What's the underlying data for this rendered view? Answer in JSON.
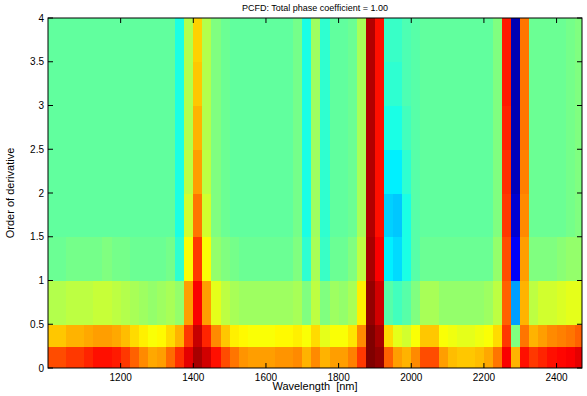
{
  "chart_data": {
    "type": "heatmap",
    "title": "PCFD: Total phase coefficient = 1.00",
    "x_label": "Wavelength  [nm]",
    "y_label": "Order of derivative",
    "xlim": [
      1000,
      2470
    ],
    "ylim": [
      0,
      4
    ],
    "xticks": [
      1200,
      1400,
      1600,
      1800,
      2000,
      2200,
      2400
    ],
    "yticks": [
      0,
      0.5,
      1,
      1.5,
      2,
      2.5,
      3,
      3.5,
      4
    ],
    "zlim": [
      0,
      1
    ],
    "x": [
      1000,
      1025,
      1050,
      1075,
      1100,
      1125,
      1150,
      1175,
      1200,
      1225,
      1250,
      1275,
      1300,
      1325,
      1350,
      1375,
      1400,
      1425,
      1450,
      1475,
      1500,
      1525,
      1550,
      1575,
      1600,
      1625,
      1650,
      1675,
      1700,
      1725,
      1750,
      1775,
      1800,
      1825,
      1850,
      1875,
      1900,
      1925,
      1950,
      1975,
      2000,
      2025,
      2050,
      2075,
      2100,
      2125,
      2150,
      2175,
      2200,
      2225,
      2250,
      2275,
      2300,
      2325,
      2350,
      2375,
      2400,
      2425,
      2450,
      2475
    ],
    "y": [
      0,
      0.25,
      0.5,
      1,
      1.5,
      2,
      2.5,
      3,
      3.5,
      4
    ],
    "values": [
      [
        0.8,
        0.68,
        0.55,
        0.48,
        0.47,
        0.47,
        0.47,
        0.47,
        0.47
      ],
      [
        0.8,
        0.68,
        0.55,
        0.48,
        0.47,
        0.47,
        0.47,
        0.47,
        0.47
      ],
      [
        0.82,
        0.7,
        0.56,
        0.49,
        0.47,
        0.47,
        0.47,
        0.47,
        0.47
      ],
      [
        0.82,
        0.7,
        0.56,
        0.49,
        0.47,
        0.47,
        0.47,
        0.47,
        0.47
      ],
      [
        0.84,
        0.71,
        0.56,
        0.49,
        0.47,
        0.47,
        0.47,
        0.47,
        0.47
      ],
      [
        0.86,
        0.72,
        0.57,
        0.49,
        0.47,
        0.47,
        0.47,
        0.47,
        0.47
      ],
      [
        0.86,
        0.72,
        0.57,
        0.5,
        0.47,
        0.47,
        0.47,
        0.47,
        0.47
      ],
      [
        0.85,
        0.71,
        0.56,
        0.49,
        0.47,
        0.47,
        0.47,
        0.47,
        0.47
      ],
      [
        0.82,
        0.69,
        0.55,
        0.49,
        0.47,
        0.47,
        0.47,
        0.47,
        0.47
      ],
      [
        0.78,
        0.66,
        0.54,
        0.48,
        0.47,
        0.47,
        0.47,
        0.47,
        0.47
      ],
      [
        0.74,
        0.64,
        0.53,
        0.48,
        0.47,
        0.47,
        0.47,
        0.47,
        0.47
      ],
      [
        0.71,
        0.62,
        0.52,
        0.48,
        0.47,
        0.47,
        0.47,
        0.47,
        0.47
      ],
      [
        0.72,
        0.63,
        0.53,
        0.48,
        0.47,
        0.47,
        0.47,
        0.47,
        0.47
      ],
      [
        0.77,
        0.66,
        0.54,
        0.49,
        0.47,
        0.47,
        0.47,
        0.47,
        0.47
      ],
      [
        0.83,
        0.7,
        0.52,
        0.42,
        0.4,
        0.4,
        0.4,
        0.4,
        0.4
      ],
      [
        0.9,
        0.82,
        0.72,
        0.62,
        0.58,
        0.56,
        0.55,
        0.55,
        0.55
      ],
      [
        0.96,
        0.93,
        0.88,
        0.82,
        0.76,
        0.72,
        0.7,
        0.68,
        0.67
      ],
      [
        0.92,
        0.84,
        0.72,
        0.62,
        0.58,
        0.56,
        0.55,
        0.55,
        0.55
      ],
      [
        0.86,
        0.74,
        0.6,
        0.52,
        0.5,
        0.5,
        0.5,
        0.5,
        0.5
      ],
      [
        0.8,
        0.68,
        0.56,
        0.5,
        0.48,
        0.48,
        0.48,
        0.48,
        0.48
      ],
      [
        0.76,
        0.64,
        0.54,
        0.49,
        0.47,
        0.47,
        0.47,
        0.47,
        0.47
      ],
      [
        0.73,
        0.63,
        0.53,
        0.48,
        0.47,
        0.47,
        0.47,
        0.47,
        0.47
      ],
      [
        0.72,
        0.62,
        0.53,
        0.48,
        0.47,
        0.47,
        0.47,
        0.47,
        0.47
      ],
      [
        0.72,
        0.62,
        0.53,
        0.48,
        0.47,
        0.47,
        0.47,
        0.47,
        0.47
      ],
      [
        0.72,
        0.62,
        0.53,
        0.48,
        0.47,
        0.47,
        0.47,
        0.47,
        0.47
      ],
      [
        0.73,
        0.63,
        0.53,
        0.48,
        0.47,
        0.47,
        0.47,
        0.47,
        0.47
      ],
      [
        0.73,
        0.63,
        0.53,
        0.48,
        0.47,
        0.47,
        0.47,
        0.47,
        0.47
      ],
      [
        0.74,
        0.64,
        0.54,
        0.5,
        0.49,
        0.49,
        0.49,
        0.49,
        0.49
      ],
      [
        0.7,
        0.62,
        0.5,
        0.42,
        0.4,
        0.4,
        0.4,
        0.4,
        0.4
      ],
      [
        0.74,
        0.66,
        0.56,
        0.54,
        0.53,
        0.53,
        0.53,
        0.53,
        0.53
      ],
      [
        0.7,
        0.6,
        0.5,
        0.43,
        0.42,
        0.42,
        0.42,
        0.42,
        0.42
      ],
      [
        0.72,
        0.62,
        0.53,
        0.48,
        0.47,
        0.47,
        0.47,
        0.47,
        0.47
      ],
      [
        0.72,
        0.62,
        0.52,
        0.48,
        0.47,
        0.47,
        0.47,
        0.47,
        0.47
      ],
      [
        0.75,
        0.65,
        0.54,
        0.5,
        0.48,
        0.48,
        0.48,
        0.48,
        0.48
      ],
      [
        0.82,
        0.74,
        0.64,
        0.56,
        0.54,
        0.54,
        0.54,
        0.54,
        0.54
      ],
      [
        1,
        1,
        0.98,
        0.96,
        0.95,
        0.95,
        0.95,
        0.95,
        0.95
      ],
      [
        0.98,
        0.96,
        0.92,
        0.88,
        0.86,
        0.86,
        0.86,
        0.86,
        0.86
      ],
      [
        0.78,
        0.66,
        0.46,
        0.36,
        0.33,
        0.36,
        0.4,
        0.42,
        0.43
      ],
      [
        0.72,
        0.6,
        0.44,
        0.34,
        0.32,
        0.36,
        0.4,
        0.42,
        0.43
      ],
      [
        0.7,
        0.58,
        0.46,
        0.4,
        0.4,
        0.42,
        0.44,
        0.45,
        0.45
      ],
      [
        0.74,
        0.62,
        0.5,
        0.46,
        0.46,
        0.46,
        0.46,
        0.46,
        0.46
      ],
      [
        0.8,
        0.68,
        0.54,
        0.48,
        0.47,
        0.47,
        0.47,
        0.47,
        0.47
      ],
      [
        0.8,
        0.68,
        0.54,
        0.48,
        0.47,
        0.47,
        0.47,
        0.47,
        0.47
      ],
      [
        0.72,
        0.62,
        0.52,
        0.48,
        0.47,
        0.47,
        0.47,
        0.47,
        0.47
      ],
      [
        0.69,
        0.61,
        0.52,
        0.48,
        0.47,
        0.47,
        0.47,
        0.47,
        0.47
      ],
      [
        0.68,
        0.6,
        0.52,
        0.48,
        0.47,
        0.47,
        0.47,
        0.47,
        0.47
      ],
      [
        0.68,
        0.6,
        0.52,
        0.48,
        0.47,
        0.47,
        0.47,
        0.47,
        0.47
      ],
      [
        0.69,
        0.61,
        0.52,
        0.48,
        0.47,
        0.47,
        0.47,
        0.47,
        0.47
      ],
      [
        0.71,
        0.62,
        0.53,
        0.48,
        0.47,
        0.47,
        0.47,
        0.47,
        0.47
      ],
      [
        0.76,
        0.66,
        0.56,
        0.52,
        0.5,
        0.5,
        0.5,
        0.5,
        0.5
      ],
      [
        0.88,
        0.82,
        0.78,
        0.8,
        0.82,
        0.83,
        0.84,
        0.85,
        0.85
      ],
      [
        0.7,
        0.5,
        0.28,
        0.12,
        0.08,
        0.06,
        0.05,
        0.05,
        0.05
      ],
      [
        0.86,
        0.76,
        0.7,
        0.72,
        0.74,
        0.75,
        0.76,
        0.76,
        0.76
      ],
      [
        0.82,
        0.7,
        0.56,
        0.5,
        0.48,
        0.48,
        0.48,
        0.48,
        0.48
      ],
      [
        0.84,
        0.72,
        0.58,
        0.5,
        0.48,
        0.48,
        0.48,
        0.48,
        0.48
      ],
      [
        0.86,
        0.74,
        0.58,
        0.5,
        0.48,
        0.48,
        0.48,
        0.48,
        0.48
      ],
      [
        0.87,
        0.75,
        0.59,
        0.51,
        0.48,
        0.48,
        0.48,
        0.48,
        0.48
      ],
      [
        0.88,
        0.76,
        0.6,
        0.52,
        0.49,
        0.49,
        0.49,
        0.49,
        0.49
      ],
      [
        0.9,
        0.78,
        0.6,
        0.52,
        0.5,
        0.5,
        0.5,
        0.5,
        0.5
      ]
    ]
  }
}
